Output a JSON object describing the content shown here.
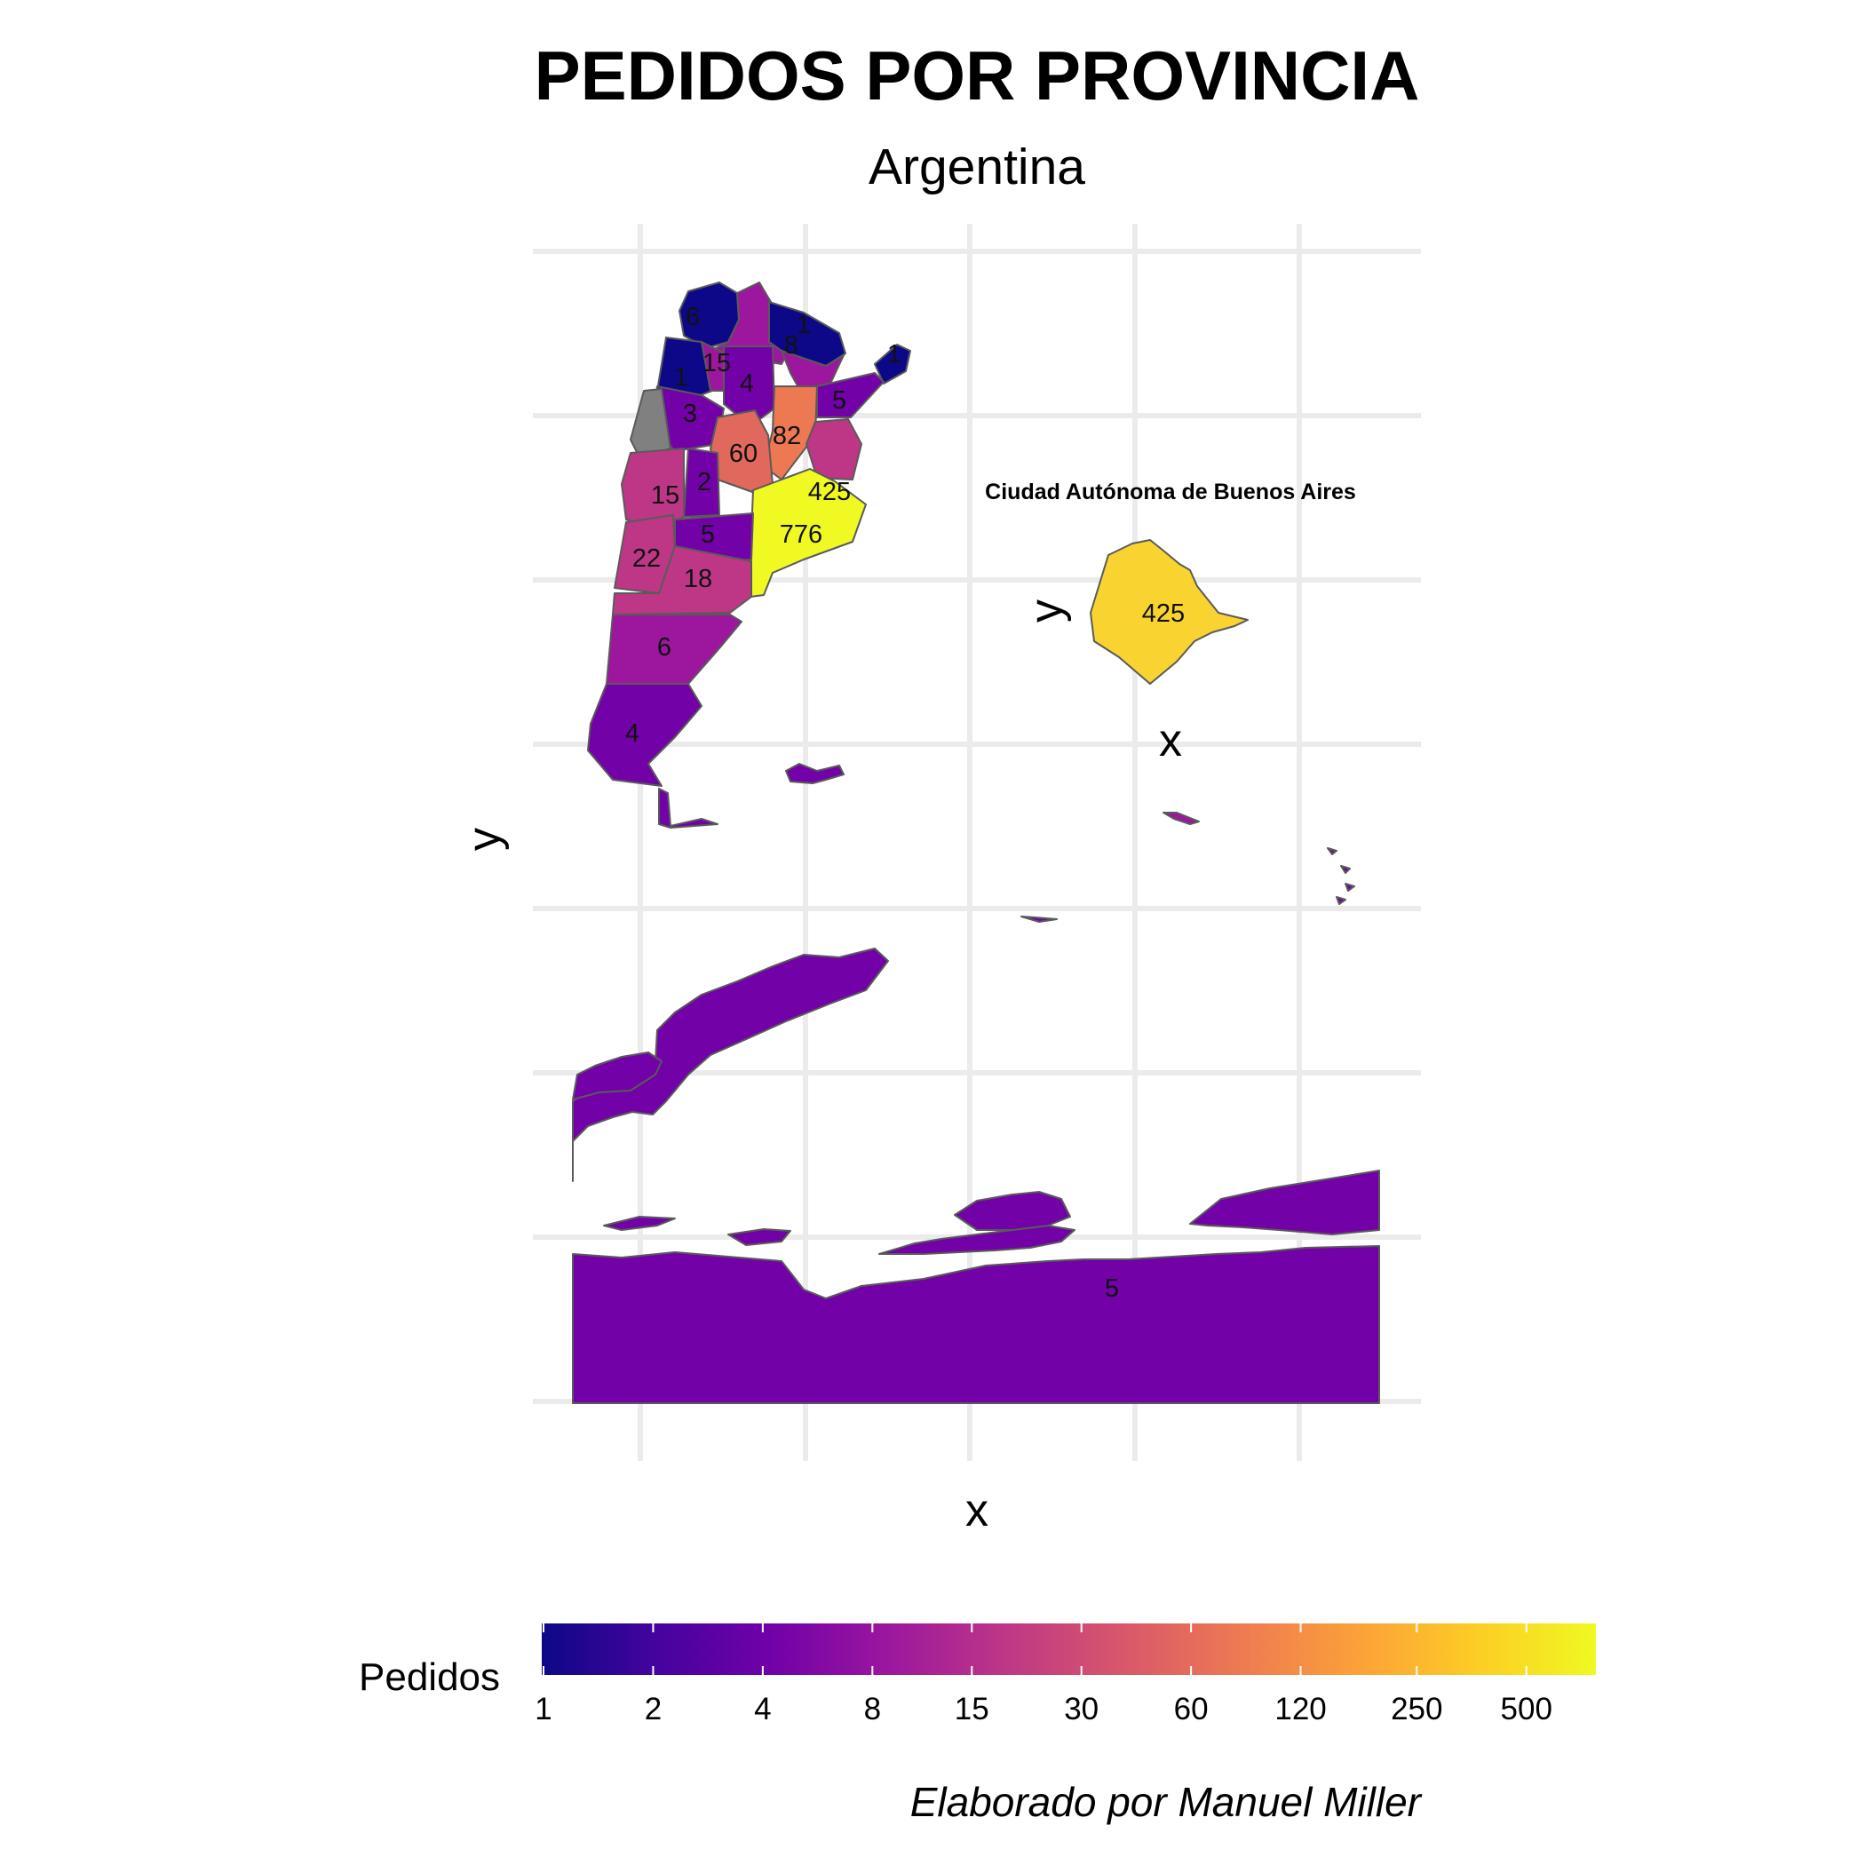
{
  "title": "PEDIDOS POR PROVINCIA",
  "subtitle": "Argentina",
  "caption": "Elaborado por Manuel Miller",
  "main_map": {
    "xlabel": "x",
    "ylabel": "y"
  },
  "inset": {
    "title": "Ciudad Autónoma de Buenos Aires",
    "xlabel": "x",
    "ylabel": "y",
    "value": 425
  },
  "legend": {
    "title": "Pedidos",
    "scale": "log",
    "min": 1,
    "max": 776,
    "ticks": [
      "1",
      "2",
      "4",
      "8",
      "15",
      "30",
      "60",
      "120",
      "250",
      "500"
    ],
    "palette": [
      "#0d0887",
      "#46039f",
      "#7201a8",
      "#9c179e",
      "#bd3786",
      "#d8576b",
      "#ed7953",
      "#fb9f3a",
      "#fdca26",
      "#f0f921"
    ]
  },
  "missing_color": "#808080",
  "chart_data": {
    "type": "choropleth",
    "value_name": "Pedidos",
    "labels": [
      "6",
      "1",
      "8",
      "1",
      "1",
      "15",
      "4",
      "5",
      "3",
      "82",
      "60",
      "2",
      "425",
      "15",
      "5",
      "776",
      "22",
      "18",
      "6",
      "4",
      "5"
    ]
  }
}
